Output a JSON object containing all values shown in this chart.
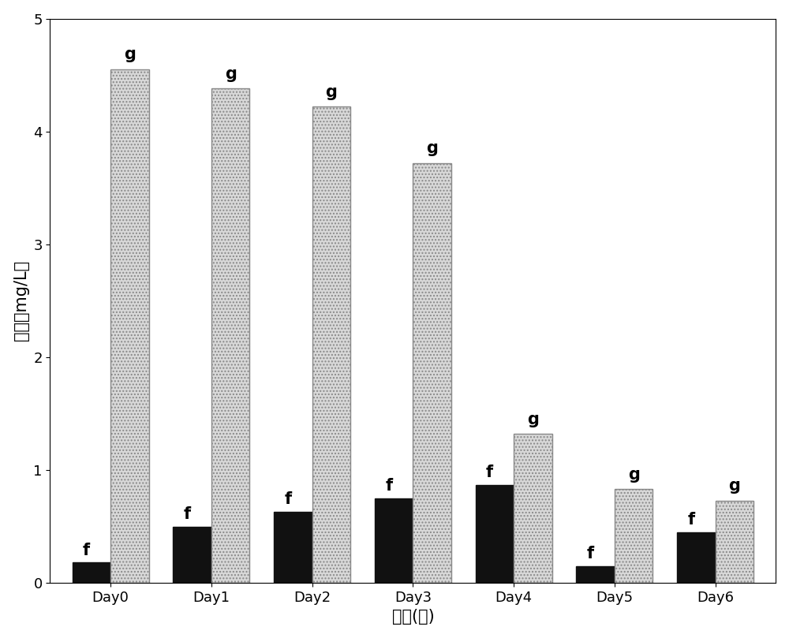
{
  "categories": [
    "Day0",
    "Day1",
    "Day2",
    "Day3",
    "Day4",
    "Day5",
    "Day6"
  ],
  "black_values": [
    0.18,
    0.5,
    0.63,
    0.75,
    0.87,
    0.15,
    0.45
  ],
  "gray_values": [
    4.55,
    4.38,
    4.22,
    3.72,
    1.32,
    0.83,
    0.73
  ],
  "black_labels": [
    "f",
    "f",
    "f",
    "f",
    "f",
    "f",
    "f"
  ],
  "gray_labels": [
    "g",
    "g",
    "g",
    "g",
    "g",
    "g",
    "g"
  ],
  "black_color": "#111111",
  "gray_facecolor": "#d8d8d8",
  "gray_edgecolor": "#888888",
  "ylabel": "浓度（mg/L）",
  "xlabel": "时间(天)",
  "ylim": [
    0,
    5
  ],
  "yticks": [
    0,
    1,
    2,
    3,
    4,
    5
  ],
  "bar_width": 0.38,
  "background_color": "#ffffff",
  "tick_fontsize": 13,
  "axis_label_fontsize": 15,
  "annotation_fontsize": 15
}
